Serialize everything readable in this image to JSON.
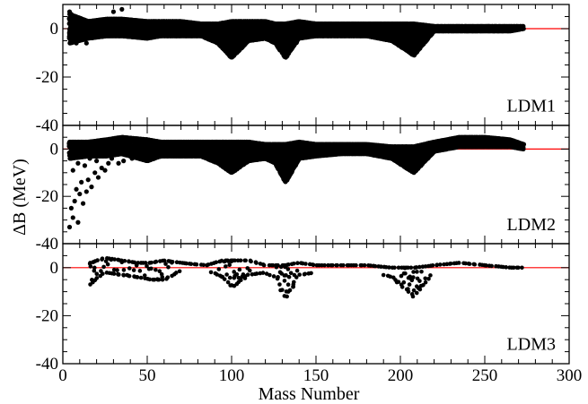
{
  "chart_data": {
    "type": "scatter",
    "xlabel": "Mass Number",
    "ylabel": "ΔB (MeV)",
    "xlim": [
      0,
      300
    ],
    "ylim": [
      -40,
      10
    ],
    "x_ticks": [
      0,
      50,
      100,
      150,
      200,
      250,
      300
    ],
    "x_tick_labels": [
      "0",
      "50",
      "100",
      "150",
      "200",
      "250",
      "300"
    ],
    "y_ticks": [
      0,
      -20,
      -40
    ],
    "y_tick_labels": [
      "0",
      "-20",
      "-40"
    ],
    "reference_line": {
      "y": 0,
      "color": "#ff0000"
    },
    "marker_color": "#000000",
    "panels": [
      {
        "label": "LDM1",
        "series_kind": "wide",
        "anchors": {
          "x": [
            4,
            15,
            26,
            35,
            50,
            58,
            70,
            82,
            92,
            100,
            110,
            120,
            126,
            132,
            140,
            150,
            165,
            180,
            195,
            208,
            220,
            235,
            250,
            265,
            273
          ],
          "upper": [
            6,
            3,
            4,
            4,
            3,
            3,
            3,
            2,
            2,
            3,
            3,
            3,
            2,
            2,
            3,
            2,
            2,
            2,
            2,
            2,
            1,
            1,
            1,
            1,
            1
          ],
          "lower": [
            -6,
            -4,
            -3,
            -3,
            -4,
            -3,
            -3,
            -3,
            -6,
            -12,
            -5,
            -4,
            -6,
            -12,
            -4,
            -3,
            -3,
            -3,
            -5,
            -11,
            -1,
            -1,
            -1,
            -1,
            0
          ]
        },
        "outliers": [
          {
            "x": 4,
            "y": 7
          },
          {
            "x": 5,
            "y": 6
          },
          {
            "x": 8,
            "y": -6
          },
          {
            "x": 11,
            "y": -4
          },
          {
            "x": 14,
            "y": -6
          },
          {
            "x": 6,
            "y": -3
          },
          {
            "x": 30,
            "y": 7
          },
          {
            "x": 35,
            "y": 8
          }
        ]
      },
      {
        "label": "LDM2",
        "series_kind": "wide",
        "anchors": {
          "x": [
            4,
            15,
            26,
            35,
            50,
            58,
            70,
            82,
            92,
            100,
            110,
            120,
            126,
            132,
            140,
            150,
            165,
            180,
            195,
            208,
            220,
            235,
            250,
            265,
            273
          ],
          "upper": [
            3,
            3,
            4,
            5,
            4,
            3,
            3,
            3,
            3,
            3,
            3,
            2,
            2,
            2,
            3,
            2,
            2,
            2,
            1,
            1,
            3,
            5,
            5,
            4,
            2
          ],
          "lower": [
            -4,
            -3,
            -3,
            -2,
            -5,
            -3,
            -3,
            -3,
            -6,
            -10,
            -5,
            -4,
            -6,
            -14,
            -4,
            -3,
            -2,
            -2,
            -4,
            -10,
            -1,
            1,
            1,
            1,
            0
          ]
        },
        "outliers": [
          {
            "x": 4,
            "y": -33
          },
          {
            "x": 6,
            "y": -29
          },
          {
            "x": 9,
            "y": -31
          },
          {
            "x": 5,
            "y": -25
          },
          {
            "x": 7,
            "y": -22
          },
          {
            "x": 10,
            "y": -19
          },
          {
            "x": 12,
            "y": -23
          },
          {
            "x": 8,
            "y": -17
          },
          {
            "x": 14,
            "y": -18
          },
          {
            "x": 15,
            "y": -13
          },
          {
            "x": 11,
            "y": -14
          },
          {
            "x": 17,
            "y": -16
          },
          {
            "x": 19,
            "y": -10
          },
          {
            "x": 21,
            "y": -12
          },
          {
            "x": 23,
            "y": -8
          },
          {
            "x": 25,
            "y": -9
          },
          {
            "x": 27,
            "y": -6
          },
          {
            "x": 6,
            "y": -9
          },
          {
            "x": 9,
            "y": -6
          },
          {
            "x": 13,
            "y": -7
          },
          {
            "x": 16,
            "y": -4
          },
          {
            "x": 20,
            "y": -5
          },
          {
            "x": 29,
            "y": -4
          },
          {
            "x": 33,
            "y": -6
          },
          {
            "x": 36,
            "y": -5
          },
          {
            "x": 38,
            "y": -2
          },
          {
            "x": 41,
            "y": -4
          },
          {
            "x": 44,
            "y": -3
          },
          {
            "x": 47,
            "y": -2
          },
          {
            "x": 31,
            "y": -2
          },
          {
            "x": 18,
            "y": -2
          },
          {
            "x": 24,
            "y": -3
          }
        ]
      },
      {
        "label": "LDM3",
        "series_kind": "sparse",
        "anchors": {
          "x": [
            16,
            25,
            35,
            45,
            52,
            60,
            70,
            85,
            95,
            100,
            110,
            120,
            126,
            132,
            140,
            150,
            165,
            180,
            195,
            208,
            220,
            235,
            250,
            265,
            273
          ],
          "upper": [
            2,
            4,
            3,
            2,
            2,
            3,
            2,
            1,
            3,
            3,
            3,
            1,
            1,
            1,
            2,
            1,
            1,
            1,
            0,
            0,
            1,
            2,
            1,
            0,
            0
          ],
          "lower": [
            -7,
            -2,
            -3,
            -4,
            -5,
            -5,
            -1,
            -1,
            -4,
            -8,
            -3,
            -2,
            -4,
            -13,
            -3,
            -2,
            -1,
            -1,
            -4,
            -12,
            -1,
            0,
            -1,
            -1,
            -1
          ]
        },
        "outliers": []
      }
    ]
  }
}
